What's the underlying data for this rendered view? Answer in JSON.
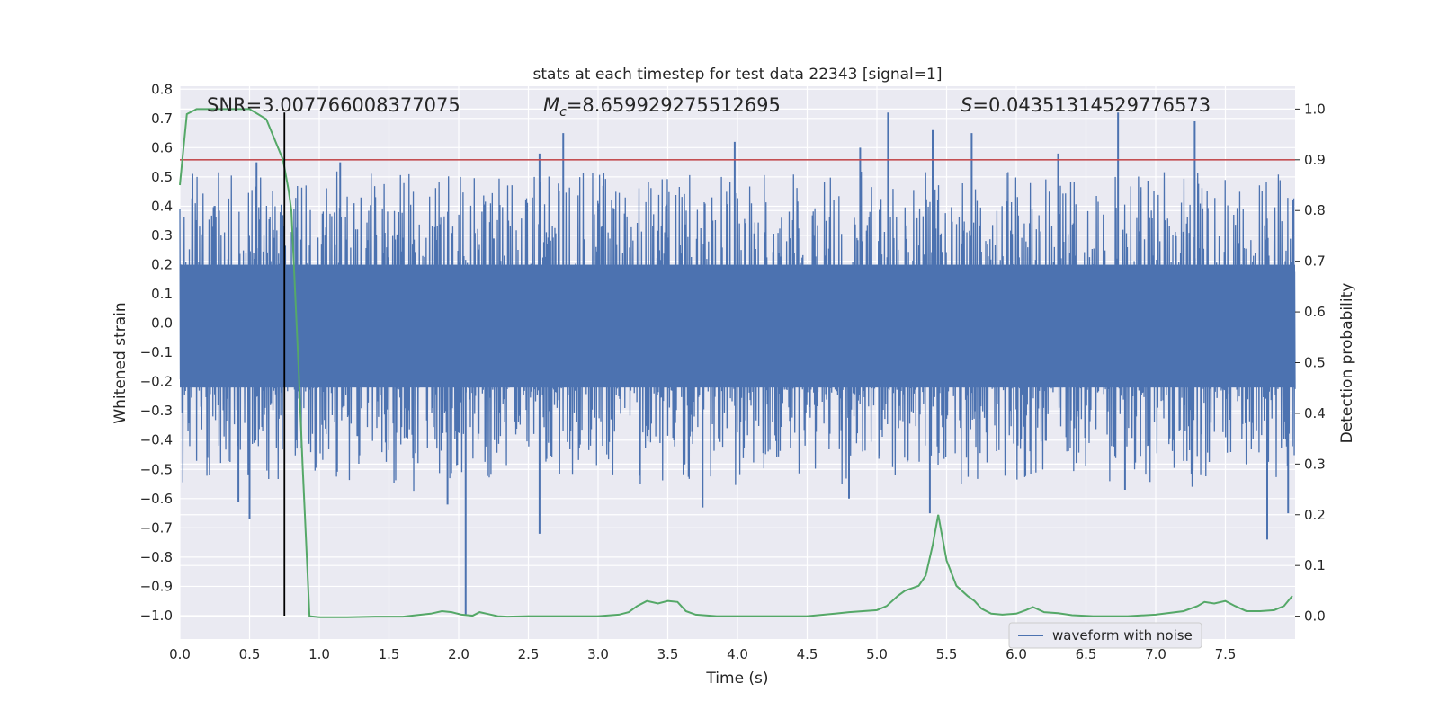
{
  "chart_data": {
    "type": "line",
    "title": "stats at each timestep for test data 22343 [signal=1]",
    "xlabel": "Time (s)",
    "ylabel": "Whitened strain",
    "y2label": "Detection probability",
    "xlim": [
      0.0,
      8.0
    ],
    "ylim": [
      -1.08,
      0.81
    ],
    "y2lim": [
      -0.045,
      1.045
    ],
    "xticks": [
      "0.0",
      "0.5",
      "1.0",
      "1.5",
      "2.0",
      "2.5",
      "3.0",
      "3.5",
      "4.0",
      "4.5",
      "5.0",
      "5.5",
      "6.0",
      "6.5",
      "7.0",
      "7.5"
    ],
    "yticks": [
      "0.8",
      "0.7",
      "0.6",
      "0.5",
      "0.4",
      "0.3",
      "0.2",
      "0.1",
      "0.0",
      "−0.1",
      "−0.2",
      "−0.3",
      "−0.4",
      "−0.5",
      "−0.6",
      "−0.7",
      "−0.8",
      "−0.9",
      "−1.0"
    ],
    "y2ticks": [
      "1.0",
      "0.9",
      "0.8",
      "0.7",
      "0.6",
      "0.5",
      "0.4",
      "0.3",
      "0.2",
      "0.1",
      "0.0"
    ],
    "grid": true,
    "legend_position": "lower-right",
    "legend": [
      "waveform with noise"
    ],
    "annotations": {
      "snr": "SNR=3.007766008377075",
      "mc_symbol": "M",
      "mc_sub": "c",
      "mc_value": "=8.659929275512695",
      "s_symbol": "S",
      "s_value": "=0.04351314529776573"
    },
    "series": [
      {
        "name": "waveform with noise",
        "axis": "left",
        "color": "#4c72b0",
        "style": "noise",
        "x_range": [
          0.0,
          8.0
        ],
        "core_amplitude": 0.2,
        "typical_peak": 0.42,
        "max": 0.72,
        "min": -1.0,
        "strong_peaks": [
          {
            "x": 0.55,
            "y": 0.55
          },
          {
            "x": 1.15,
            "y": 0.55
          },
          {
            "x": 2.75,
            "y": 0.65
          },
          {
            "x": 3.98,
            "y": 0.62
          },
          {
            "x": 5.08,
            "y": 0.72
          },
          {
            "x": 5.4,
            "y": 0.66
          },
          {
            "x": 5.68,
            "y": 0.65
          },
          {
            "x": 6.73,
            "y": 0.72
          },
          {
            "x": 7.28,
            "y": 0.69
          },
          {
            "x": 6.3,
            "y": 0.58
          },
          {
            "x": 2.58,
            "y": 0.58
          },
          {
            "x": 4.88,
            "y": 0.6
          }
        ],
        "strong_troughs": [
          {
            "x": 0.42,
            "y": -0.61
          },
          {
            "x": 0.5,
            "y": -0.67
          },
          {
            "x": 2.05,
            "y": -1.0
          },
          {
            "x": 2.58,
            "y": -0.72
          },
          {
            "x": 3.75,
            "y": -0.63
          },
          {
            "x": 4.8,
            "y": -0.6
          },
          {
            "x": 5.38,
            "y": -0.65
          },
          {
            "x": 7.8,
            "y": -0.74
          },
          {
            "x": 7.95,
            "y": -0.65
          },
          {
            "x": 1.92,
            "y": -0.62
          },
          {
            "x": 6.78,
            "y": -0.57
          }
        ]
      },
      {
        "name": "",
        "axis": "right",
        "color": "#55a868",
        "x": [
          0.0,
          0.05,
          0.12,
          0.2,
          0.3,
          0.4,
          0.5,
          0.56,
          0.62,
          0.68,
          0.74,
          0.78,
          0.8,
          0.85,
          0.88,
          0.93,
          1.0,
          1.2,
          1.4,
          1.6,
          1.8,
          1.88,
          1.95,
          2.02,
          2.1,
          2.15,
          2.2,
          2.28,
          2.35,
          2.5,
          2.7,
          3.0,
          3.15,
          3.22,
          3.28,
          3.35,
          3.43,
          3.5,
          3.57,
          3.63,
          3.7,
          3.85,
          4.0,
          4.2,
          4.5,
          4.7,
          4.8,
          5.0,
          5.07,
          5.15,
          5.2,
          5.3,
          5.35,
          5.4,
          5.44,
          5.5,
          5.57,
          5.65,
          5.7,
          5.75,
          5.82,
          5.9,
          6.0,
          6.07,
          6.12,
          6.2,
          6.3,
          6.4,
          6.55,
          6.8,
          7.0,
          7.2,
          7.3,
          7.35,
          7.42,
          7.5,
          7.57,
          7.65,
          7.75,
          7.85,
          7.92,
          7.98
        ],
        "y": [
          0.85,
          0.99,
          1.0,
          1.0,
          1.0,
          1.0,
          1.0,
          0.99,
          0.98,
          0.94,
          0.9,
          0.84,
          0.8,
          0.5,
          0.3,
          0.0,
          -0.002,
          -0.002,
          -0.001,
          -0.001,
          0.005,
          0.01,
          0.008,
          0.003,
          0.001,
          0.008,
          0.005,
          0.0,
          -0.001,
          0.0,
          0.0,
          0.0,
          0.003,
          0.008,
          0.02,
          0.03,
          0.025,
          0.03,
          0.028,
          0.01,
          0.003,
          0.0,
          0.0,
          0.0,
          0.0,
          0.005,
          0.008,
          0.012,
          0.02,
          0.04,
          0.05,
          0.06,
          0.08,
          0.14,
          0.2,
          0.11,
          0.06,
          0.04,
          0.03,
          0.015,
          0.005,
          0.003,
          0.005,
          0.012,
          0.018,
          0.008,
          0.006,
          0.002,
          0.0,
          0.0,
          0.003,
          0.01,
          0.02,
          0.028,
          0.025,
          0.03,
          0.02,
          0.01,
          0.01,
          0.012,
          0.02,
          0.04
        ]
      }
    ],
    "hlines": [
      {
        "axis": "right",
        "y": 0.9,
        "color": "#c44e52"
      }
    ],
    "vlines": [
      {
        "x": 0.75,
        "y_range": [
          -1.0,
          0.72
        ],
        "color": "#000000"
      }
    ]
  }
}
